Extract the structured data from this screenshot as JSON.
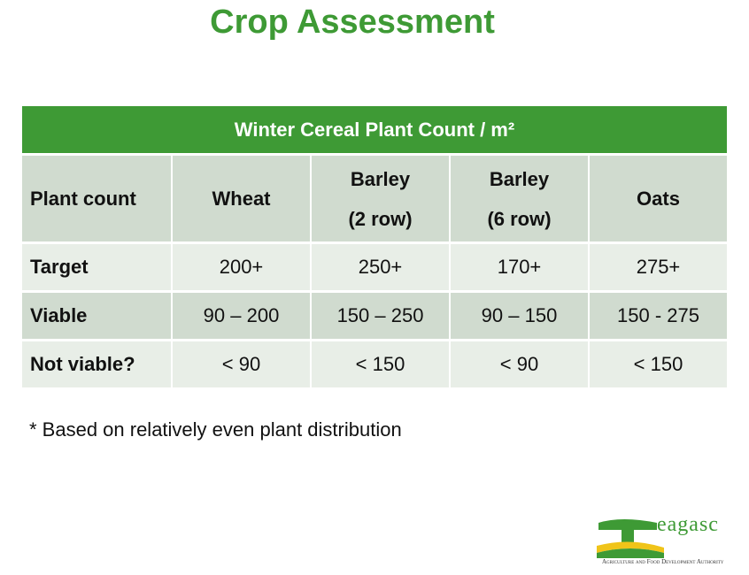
{
  "title": "Crop Assessment",
  "table": {
    "caption": "Winter Cereal Plant Count / m²",
    "header": [
      [
        "Plant count"
      ],
      [
        "Wheat"
      ],
      [
        "Barley",
        "(2 row)"
      ],
      [
        "Barley",
        "(6 row)"
      ],
      [
        "Oats"
      ]
    ],
    "rows": [
      [
        "Target",
        "200+",
        "250+",
        "170+",
        "275+"
      ],
      [
        "Viable",
        "90 – 200",
        "150 – 250",
        "90 – 150",
        "150 - 275"
      ],
      [
        "Not viable?",
        "< 90",
        "< 150",
        "< 90",
        "< 150"
      ]
    ]
  },
  "footnote": "* Based on relatively even plant distribution",
  "logo": {
    "name": "eagasc",
    "tagline": "Agriculture and Food Development Authority"
  }
}
